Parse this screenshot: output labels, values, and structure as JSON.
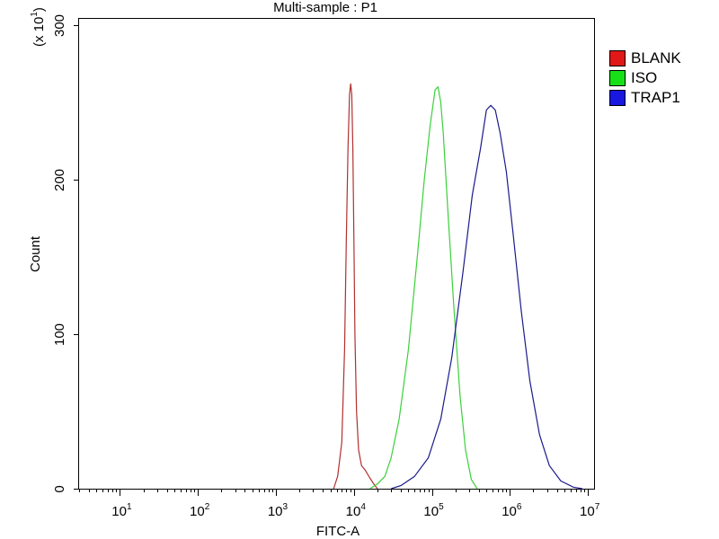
{
  "chart_data": {
    "type": "line",
    "title": "Multi-sample : P1",
    "xlabel": "FITC-A",
    "ylabel": "Count",
    "y_multiplier_label": "(x 10",
    "y_multiplier_exp": "1",
    "x_scale": "log",
    "xlim": [
      3,
      12000000
    ],
    "ylim": [
      0,
      3040
    ],
    "x_ticks": [
      {
        "value": 10,
        "base": "10",
        "exp": "1"
      },
      {
        "value": 100,
        "base": "10",
        "exp": "2"
      },
      {
        "value": 1000,
        "base": "10",
        "exp": "3"
      },
      {
        "value": 10000,
        "base": "10",
        "exp": "4"
      },
      {
        "value": 100000,
        "base": "10",
        "exp": "5"
      },
      {
        "value": 1000000,
        "base": "10",
        "exp": "6"
      },
      {
        "value": 10000000,
        "base": "10",
        "exp": "7"
      }
    ],
    "y_ticks": [
      {
        "value": 0,
        "label": "0"
      },
      {
        "value": 1000,
        "label": "100"
      },
      {
        "value": 2000,
        "label": "200"
      },
      {
        "value": 3000,
        "label": "300"
      }
    ],
    "legend_position": "right",
    "series": [
      {
        "name": "BLANK",
        "color": "#b03030",
        "x": [
          5500,
          6200,
          7000,
          7600,
          8000,
          8400,
          8800,
          9100,
          9400,
          9700,
          10000,
          10300,
          10800,
          11500,
          12500,
          14000,
          16000,
          18000,
          20000
        ],
        "y": [
          0,
          80,
          300,
          900,
          1600,
          2200,
          2550,
          2620,
          2550,
          2200,
          1600,
          1000,
          500,
          250,
          150,
          120,
          70,
          30,
          0
        ]
      },
      {
        "name": "ISO",
        "color": "#3ad03a",
        "x": [
          16000,
          20000,
          25000,
          30000,
          38000,
          50000,
          65000,
          80000,
          95000,
          110000,
          120000,
          130000,
          140000,
          160000,
          190000,
          230000,
          270000,
          320000,
          380000
        ],
        "y": [
          0,
          30,
          80,
          200,
          450,
          900,
          1500,
          2000,
          2350,
          2580,
          2600,
          2500,
          2300,
          1800,
          1200,
          600,
          250,
          60,
          0
        ]
      },
      {
        "name": "TRAP1",
        "color": "#1a1a8c",
        "x": [
          30000,
          40000,
          60000,
          90000,
          130000,
          180000,
          250000,
          330000,
          420000,
          500000,
          570000,
          650000,
          750000,
          900000,
          1100000,
          1400000,
          1800000,
          2400000,
          3200000,
          4500000,
          6500000,
          8500000
        ],
        "y": [
          0,
          20,
          80,
          200,
          450,
          850,
          1400,
          1900,
          2200,
          2450,
          2480,
          2450,
          2300,
          2050,
          1650,
          1150,
          700,
          350,
          150,
          50,
          10,
          0
        ]
      }
    ]
  }
}
